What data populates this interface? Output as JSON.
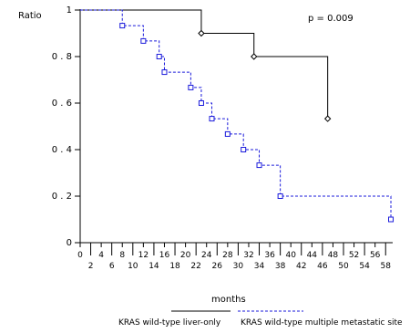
{
  "chart_data": {
    "type": "line",
    "ylabel": "Ratio",
    "xlabel": "months",
    "annotation": "p = 0.009",
    "xlim": [
      0,
      59
    ],
    "ylim": [
      0,
      1
    ],
    "y_ticks": [
      0,
      0.2,
      0.4,
      0.6,
      0.8,
      1
    ],
    "y_tick_labels": [
      "0",
      "0 . 2",
      "0 . 4",
      "0 . 6",
      "0 . 8",
      "1"
    ],
    "x_ticks": [
      0,
      2,
      4,
      6,
      8,
      10,
      12,
      14,
      16,
      18,
      20,
      22,
      24,
      26,
      28,
      30,
      32,
      34,
      36,
      38,
      40,
      42,
      44,
      46,
      48,
      50,
      52,
      54,
      56,
      58
    ],
    "x_tick_labels": [
      "0",
      "2",
      "4",
      "6",
      "8",
      "10",
      "12",
      "14",
      "16",
      "18",
      "20",
      "22",
      "24",
      "26",
      "28",
      "30",
      "32",
      "34",
      "36",
      "38",
      "40",
      "42",
      "44",
      "46",
      "48",
      "50",
      "52",
      "54",
      "56",
      "58"
    ],
    "series": [
      {
        "name": "KRAS wild-type liver-only",
        "color": "#000000",
        "style": "solid",
        "marker": "diamond",
        "steps": [
          [
            0,
            1.0
          ],
          [
            23,
            0.9
          ],
          [
            33,
            0.8
          ],
          [
            47,
            0.533
          ]
        ],
        "end_x": 47,
        "censored": [
          [
            23,
            0.9
          ],
          [
            33,
            0.8
          ],
          [
            47,
            0.533
          ]
        ]
      },
      {
        "name": "KRAS wild-type multiple metastatic site",
        "color": "#1a1adb",
        "style": "dashed",
        "marker": "square",
        "steps": [
          [
            0,
            1.0
          ],
          [
            8,
            0.933
          ],
          [
            12,
            0.867
          ],
          [
            15,
            0.8
          ],
          [
            16,
            0.733
          ],
          [
            21,
            0.667
          ],
          [
            23,
            0.6
          ],
          [
            25,
            0.533
          ],
          [
            28,
            0.467
          ],
          [
            31,
            0.4
          ],
          [
            34,
            0.333
          ],
          [
            38,
            0.2
          ],
          [
            59,
            0.1
          ]
        ],
        "end_x": 59,
        "censored": [
          [
            8,
            0.933
          ],
          [
            12,
            0.867
          ],
          [
            15,
            0.8
          ],
          [
            16,
            0.733
          ],
          [
            21,
            0.667
          ],
          [
            23,
            0.6
          ],
          [
            25,
            0.533
          ],
          [
            28,
            0.467
          ],
          [
            31,
            0.4
          ],
          [
            34,
            0.333
          ],
          [
            38,
            0.2
          ],
          [
            59,
            0.1
          ]
        ]
      }
    ]
  }
}
